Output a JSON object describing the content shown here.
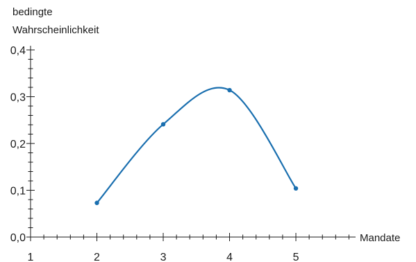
{
  "chart_data": {
    "type": "line",
    "title": "",
    "ylabel_lines": [
      "bedingte",
      "Wahrscheinlichkeit"
    ],
    "xlabel": "Mandate",
    "x_ticks": [
      "1",
      "2",
      "3",
      "4",
      "5"
    ],
    "y_ticks": [
      "0,0",
      "0,1",
      "0,2",
      "0,3",
      "0,4"
    ],
    "xlim": [
      1,
      5.9
    ],
    "ylim": [
      0,
      0.4
    ],
    "y_tick_values": [
      0,
      0.1,
      0.2,
      0.3,
      0.4
    ],
    "x_tick_values": [
      1,
      2,
      3,
      4,
      5
    ],
    "x_minor_step": 0.2,
    "y_minor_step": 0.02,
    "grid": false,
    "series": [
      {
        "x": [
          2,
          3,
          4,
          5
        ],
        "y": [
          0.073,
          0.241,
          0.314,
          0.104
        ],
        "color": "#1a6faf"
      }
    ]
  }
}
